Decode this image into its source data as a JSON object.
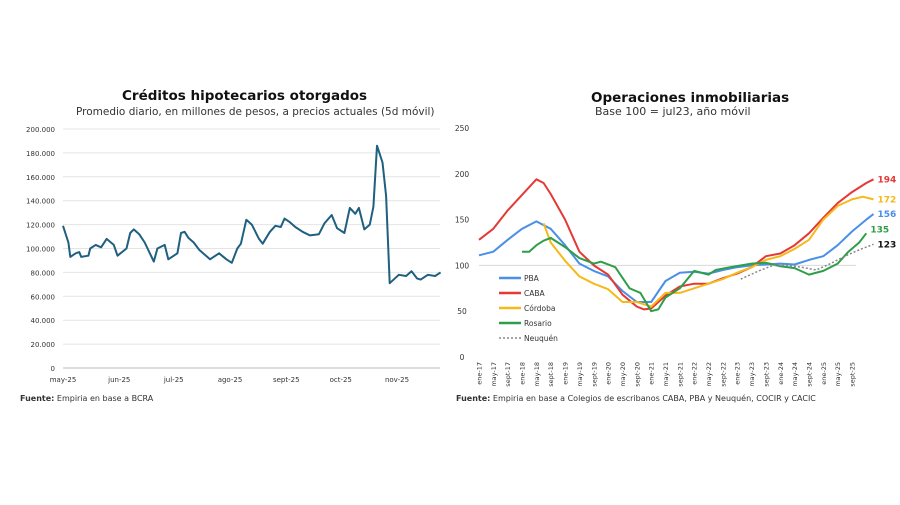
{
  "chart_data": [
    {
      "type": "line",
      "title": "Créditos hipotecarios otorgados",
      "subtitle": "Promedio diario, en millones de pesos, a precios actuales (5d móvil)",
      "source_label": "Fuente:",
      "source_text": "Empiria en base a BCRA",
      "xlabel": "",
      "ylabel": "",
      "ylim": [
        0,
        200000
      ],
      "y_ticks": [
        "0",
        "20.000",
        "40.000",
        "60.000",
        "80.000",
        "100.000",
        "120.000",
        "140.000",
        "160.000",
        "180.000",
        "200.000"
      ],
      "x_ticks": [
        {
          "label": "may-25",
          "day": 0
        },
        {
          "label": "jun-25",
          "day": 31
        },
        {
          "label": "jul-25",
          "day": 61
        },
        {
          "label": "ago-25",
          "day": 92
        },
        {
          "label": "sept-25",
          "day": 123
        },
        {
          "label": "oct-25",
          "day": 153
        },
        {
          "label": "nov-25",
          "day": 184
        }
      ],
      "x_unit": "days since 1-may-25",
      "color": "#1f5f7f",
      "series": [
        {
          "name": "Créditos hipotecarios",
          "points": [
            [
              0,
              119000
            ],
            [
              3,
              105000
            ],
            [
              4,
              93000
            ],
            [
              7,
              96000
            ],
            [
              9,
              97000
            ],
            [
              10,
              93000
            ],
            [
              14,
              94000
            ],
            [
              15,
              100000
            ],
            [
              18,
              103000
            ],
            [
              21,
              101000
            ],
            [
              24,
              108000
            ],
            [
              28,
              103000
            ],
            [
              30,
              94000
            ],
            [
              35,
              100000
            ],
            [
              37,
              113000
            ],
            [
              39,
              116000
            ],
            [
              42,
              112000
            ],
            [
              45,
              105000
            ],
            [
              50,
              89000
            ],
            [
              52,
              100000
            ],
            [
              56,
              103000
            ],
            [
              58,
              91000
            ],
            [
              63,
              96000
            ],
            [
              65,
              113000
            ],
            [
              67,
              114000
            ],
            [
              69,
              109000
            ],
            [
              72,
              105000
            ],
            [
              75,
              99000
            ],
            [
              81,
              91000
            ],
            [
              86,
              96000
            ],
            [
              90,
              91000
            ],
            [
              93,
              88000
            ],
            [
              96,
              100000
            ],
            [
              98,
              104000
            ],
            [
              101,
              124000
            ],
            [
              104,
              120000
            ],
            [
              108,
              108000
            ],
            [
              110,
              104000
            ],
            [
              112,
              109000
            ],
            [
              114,
              114000
            ],
            [
              117,
              119000
            ],
            [
              120,
              118000
            ],
            [
              122,
              125000
            ],
            [
              125,
              122000
            ],
            [
              128,
              118000
            ],
            [
              132,
              114000
            ],
            [
              136,
              111000
            ],
            [
              141,
              112000
            ],
            [
              144,
              121000
            ],
            [
              148,
              128000
            ],
            [
              151,
              117000
            ],
            [
              155,
              113000
            ],
            [
              158,
              134000
            ],
            [
              161,
              129000
            ],
            [
              163,
              134000
            ],
            [
              166,
              116000
            ],
            [
              169,
              120000
            ],
            [
              171,
              135000
            ],
            [
              173,
              186000
            ],
            [
              176,
              172000
            ],
            [
              178,
              144000
            ],
            [
              180,
              71000
            ],
            [
              185,
              78000
            ],
            [
              189,
              77000
            ],
            [
              192,
              81000
            ],
            [
              195,
              75000
            ],
            [
              197,
              74000
            ],
            [
              201,
              78000
            ],
            [
              205,
              77000
            ],
            [
              208,
              80000
            ]
          ]
        }
      ]
    },
    {
      "type": "line",
      "title": "Operaciones inmobiliarias",
      "subtitle": "Base 100 = jul23, año móvil",
      "source_label": "Fuente:",
      "source_text": "Empiria en base a Colegios de escribanos CABA, PBA y Neuquén, COCIR y CACIC",
      "ylim": [
        0,
        250
      ],
      "y_ticks": [
        "0",
        "50",
        "100",
        "150",
        "200",
        "250"
      ],
      "x_unit": "months since ene-17",
      "x_ticks": [
        "ene-17",
        "may-17",
        "sept-17",
        "ene-18",
        "may-18",
        "sept-18",
        "ene-19",
        "may-19",
        "sept-19",
        "ene-20",
        "may-20",
        "sept-20",
        "ene-21",
        "may-21",
        "sept-21",
        "ene-22",
        "may-22",
        "sept-22",
        "ene-23",
        "may-23",
        "sept-23",
        "ene-24",
        "may-24",
        "sept-24",
        "ene-25",
        "may-25",
        "sept-25"
      ],
      "reference_line": 100,
      "legend_position": "left-middle",
      "series": [
        {
          "name": "PBA",
          "color": "#4a8fe8",
          "dash": false,
          "end_label": "156",
          "points": [
            [
              0,
              111
            ],
            [
              4,
              115
            ],
            [
              8,
              128
            ],
            [
              12,
              140
            ],
            [
              16,
              148
            ],
            [
              20,
              140
            ],
            [
              24,
              122
            ],
            [
              28,
              102
            ],
            [
              32,
              94
            ],
            [
              36,
              88
            ],
            [
              40,
              72
            ],
            [
              44,
              60
            ],
            [
              48,
              60
            ],
            [
              52,
              83
            ],
            [
              56,
              92
            ],
            [
              60,
              93
            ],
            [
              64,
              91
            ],
            [
              68,
              95
            ],
            [
              72,
              98
            ],
            [
              76,
              100
            ],
            [
              80,
              101
            ],
            [
              84,
              102
            ],
            [
              88,
              101
            ],
            [
              92,
              106
            ],
            [
              96,
              110
            ],
            [
              100,
              122
            ],
            [
              104,
              137
            ],
            [
              108,
              150
            ],
            [
              110,
              156
            ]
          ]
        },
        {
          "name": "CABA",
          "color": "#e53935",
          "dash": false,
          "end_label": "194",
          "points": [
            [
              0,
              128
            ],
            [
              4,
              140
            ],
            [
              8,
              160
            ],
            [
              12,
              177
            ],
            [
              16,
              194
            ],
            [
              18,
              190
            ],
            [
              20,
              178
            ],
            [
              24,
              150
            ],
            [
              28,
              115
            ],
            [
              32,
              100
            ],
            [
              36,
              90
            ],
            [
              40,
              68
            ],
            [
              44,
              55
            ],
            [
              46,
              52
            ],
            [
              48,
              53
            ],
            [
              52,
              67
            ],
            [
              56,
              77
            ],
            [
              60,
              80
            ],
            [
              64,
              80
            ],
            [
              68,
              86
            ],
            [
              72,
              91
            ],
            [
              76,
              98
            ],
            [
              80,
              110
            ],
            [
              84,
              113
            ],
            [
              88,
              122
            ],
            [
              92,
              135
            ],
            [
              96,
              152
            ],
            [
              100,
              168
            ],
            [
              104,
              180
            ],
            [
              108,
              190
            ],
            [
              110,
              194
            ]
          ]
        },
        {
          "name": "Córdoba",
          "color": "#f6b91a",
          "dash": false,
          "end_label": "172",
          "points": [
            [
              18,
              146
            ],
            [
              20,
              125
            ],
            [
              24,
              105
            ],
            [
              28,
              88
            ],
            [
              32,
              80
            ],
            [
              36,
              74
            ],
            [
              40,
              60
            ],
            [
              44,
              60
            ],
            [
              48,
              55
            ],
            [
              52,
              70
            ],
            [
              56,
              70
            ],
            [
              60,
              75
            ],
            [
              64,
              80
            ],
            [
              68,
              85
            ],
            [
              72,
              92
            ],
            [
              76,
              98
            ],
            [
              80,
              106
            ],
            [
              84,
              110
            ],
            [
              88,
              118
            ],
            [
              92,
              128
            ],
            [
              96,
              150
            ],
            [
              100,
              165
            ],
            [
              104,
              172
            ],
            [
              107,
              175
            ],
            [
              110,
              172
            ]
          ]
        },
        {
          "name": "Rosario",
          "color": "#2e9e48",
          "dash": false,
          "end_label": "135",
          "points": [
            [
              12,
              115
            ],
            [
              14,
              115
            ],
            [
              16,
              122
            ],
            [
              18,
              127
            ],
            [
              20,
              130
            ],
            [
              22,
              125
            ],
            [
              24,
              120
            ],
            [
              28,
              108
            ],
            [
              32,
              102
            ],
            [
              34,
              104
            ],
            [
              38,
              98
            ],
            [
              42,
              75
            ],
            [
              45,
              70
            ],
            [
              48,
              50
            ],
            [
              50,
              52
            ],
            [
              52,
              65
            ],
            [
              56,
              75
            ],
            [
              60,
              94
            ],
            [
              64,
              90
            ],
            [
              66,
              95
            ],
            [
              70,
              98
            ],
            [
              76,
              102
            ],
            [
              80,
              103
            ],
            [
              84,
              99
            ],
            [
              88,
              97
            ],
            [
              92,
              90
            ],
            [
              96,
              94
            ],
            [
              100,
              102
            ],
            [
              103,
              115
            ],
            [
              106,
              125
            ],
            [
              108,
              135
            ]
          ]
        },
        {
          "name": "Neuquén",
          "color": "#888888",
          "dash": true,
          "end_label": "123",
          "points": [
            [
              73,
              85
            ],
            [
              78,
              94
            ],
            [
              82,
              100
            ],
            [
              86,
              100
            ],
            [
              90,
              98
            ],
            [
              94,
              95
            ],
            [
              98,
              102
            ],
            [
              102,
              110
            ],
            [
              106,
              117
            ],
            [
              110,
              123
            ]
          ]
        }
      ]
    }
  ]
}
